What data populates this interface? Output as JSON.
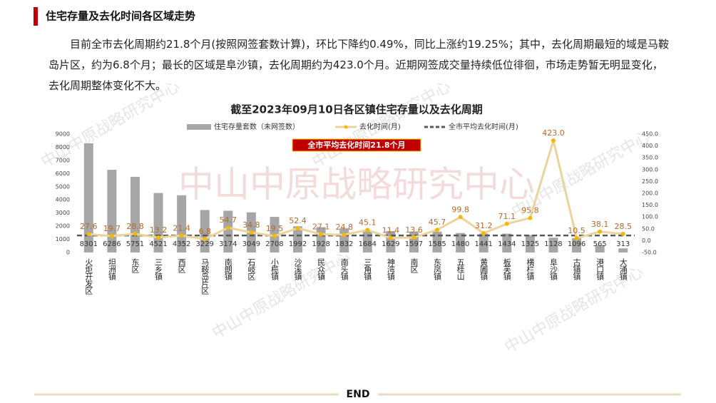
{
  "header": {
    "title": "住宅存量及去化时间各区域走势"
  },
  "paragraph": "目前全市去化周期约21.8个月(按照网签套数计算)，环比下降约0.49%，同比上涨约19.25%；其中，去化周期最短的域是马鞍岛片区，约为6.8个月；最长的区域是阜沙镇，去化周期约为423.0个月。近期网签成交量持续低位徘徊，市场走势暂无明显变化，去化周期整体变化不大。",
  "watermark": "中山中原战略研究中心",
  "footer": "END",
  "chart_data": {
    "type": "bar-line",
    "title": "截至2023年09月10日各区镇住宅存量以及去化周期",
    "categories": [
      "火炬开发区",
      "坦洲镇",
      "东区",
      "三乡镇",
      "西区",
      "马鞍岛片区",
      "南朗镇",
      "石岐区",
      "小榄镇",
      "沙溪镇",
      "民众镇",
      "南头镇",
      "三角镇",
      "神湾镇",
      "南区",
      "东凤镇",
      "五桂山",
      "黄圃镇",
      "板芙镇",
      "横栏镇",
      "阜沙镇",
      "古镇镇",
      "港口镇",
      "大涌镇"
    ],
    "series": [
      {
        "name": "住宅存量套数（未网签数）",
        "type": "bar",
        "color": "#a6a6a6",
        "values": [
          8301,
          6286,
          5751,
          4521,
          4352,
          3229,
          3174,
          3049,
          2708,
          1992,
          1928,
          1832,
          1684,
          1629,
          1597,
          1585,
          1480,
          1441,
          1434,
          1325,
          1128,
          1096,
          565,
          313
        ]
      },
      {
        "name": "去化时间(月)",
        "type": "line",
        "axis": "y2",
        "color": "#ecd39a",
        "marker_color": "#f5b800",
        "values": [
          27.6,
          19.7,
          28.8,
          13.2,
          21.4,
          6.8,
          54.7,
          34.8,
          19.5,
          52.4,
          27.1,
          24.8,
          45.1,
          11.4,
          13.6,
          45.7,
          99.8,
          31.2,
          71.1,
          95.8,
          423.0,
          10.5,
          38.1,
          28.5
        ],
        "value_labels": [
          "27.6",
          "19.7",
          "28.8",
          "13.2",
          "21.4",
          "6.8",
          "54.7",
          "34.8",
          "19.5",
          "52.4",
          "27.1",
          "24.8",
          "45.1",
          "11.4",
          "13.6",
          "45.7",
          "99.8",
          "31.2",
          "71.1",
          "95.8",
          "423.0",
          "10.5",
          "38.1",
          "28.5"
        ]
      }
    ],
    "reference_line": {
      "name": "全市平均去化时间(月)",
      "value": 21.8,
      "axis": "y2",
      "color": "#595959"
    },
    "annotation": "全市平均去化时间21.8个月",
    "ylim": [
      0,
      9000
    ],
    "yticks": [
      0,
      1000,
      2000,
      3000,
      4000,
      5000,
      6000,
      7000,
      8000,
      9000
    ],
    "y2lim": [
      -50,
      450
    ],
    "y2ticks": [
      {
        "value": -50,
        "label": "-50.0"
      },
      {
        "value": 0,
        "label": "0.0"
      },
      {
        "value": 50,
        "label": "50.0"
      },
      {
        "value": 100,
        "label": "100.0"
      },
      {
        "value": 150,
        "label": "150.0"
      },
      {
        "value": 200,
        "label": "200.0"
      },
      {
        "value": 250,
        "label": "250.0"
      },
      {
        "value": 300,
        "label": "300.0"
      },
      {
        "value": 350,
        "label": "350.0"
      },
      {
        "value": 400,
        "label": "400.0"
      },
      {
        "value": 450,
        "label": "450.0"
      }
    ]
  }
}
